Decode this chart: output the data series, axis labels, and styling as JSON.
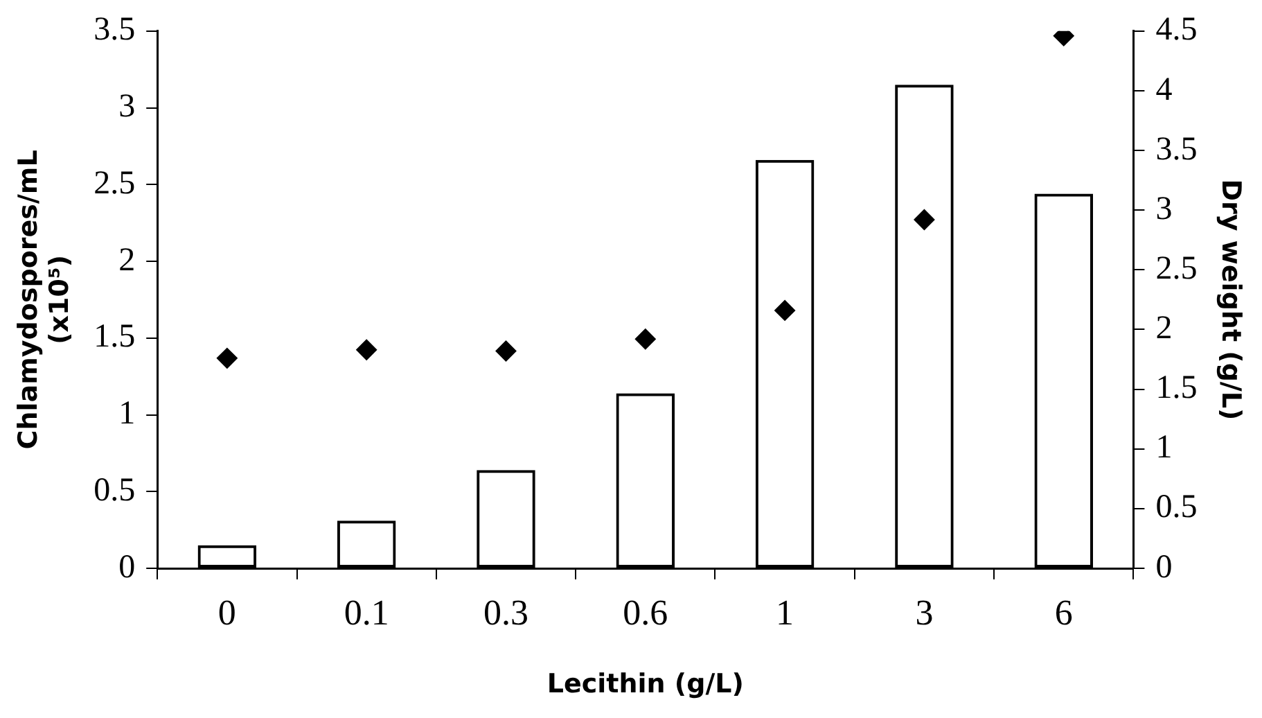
{
  "chart_data": {
    "type": "bar",
    "xlabel": "Lecithin (g/L)",
    "ylabel": "Chlamydospores/mL (x10⁵)",
    "y2label": "Dry weight (g/L)",
    "categories": [
      "0",
      "0.1",
      "0.3",
      "0.6",
      "1",
      "3",
      "6"
    ],
    "series": [
      {
        "color": "#000000",
        "values": [
          0.15,
          0.31,
          0.64,
          1.14,
          2.66,
          3.15,
          2.44
        ]
      },
      {
        "type": "scatter",
        "axis": "y2",
        "color": "#000000",
        "marker": "diamond",
        "x": [
          "0",
          "0.1",
          "0.3",
          "0.6",
          "1",
          "3",
          "6"
        ],
        "values": [
          1.76,
          1.83,
          1.82,
          1.92,
          2.16,
          2.92,
          4.46
        ]
      }
    ],
    "ylim": [
      0,
      3.5
    ],
    "yticks": [
      0,
      0.5,
      1,
      1.5,
      2,
      2.5,
      3,
      3.5
    ],
    "y2lim": [
      0,
      4.5
    ],
    "y2ticks": [
      0,
      0.5,
      1,
      1.5,
      2,
      2.5,
      3,
      3.5,
      4,
      4.5
    ],
    "grid": false,
    "legend": false
  }
}
